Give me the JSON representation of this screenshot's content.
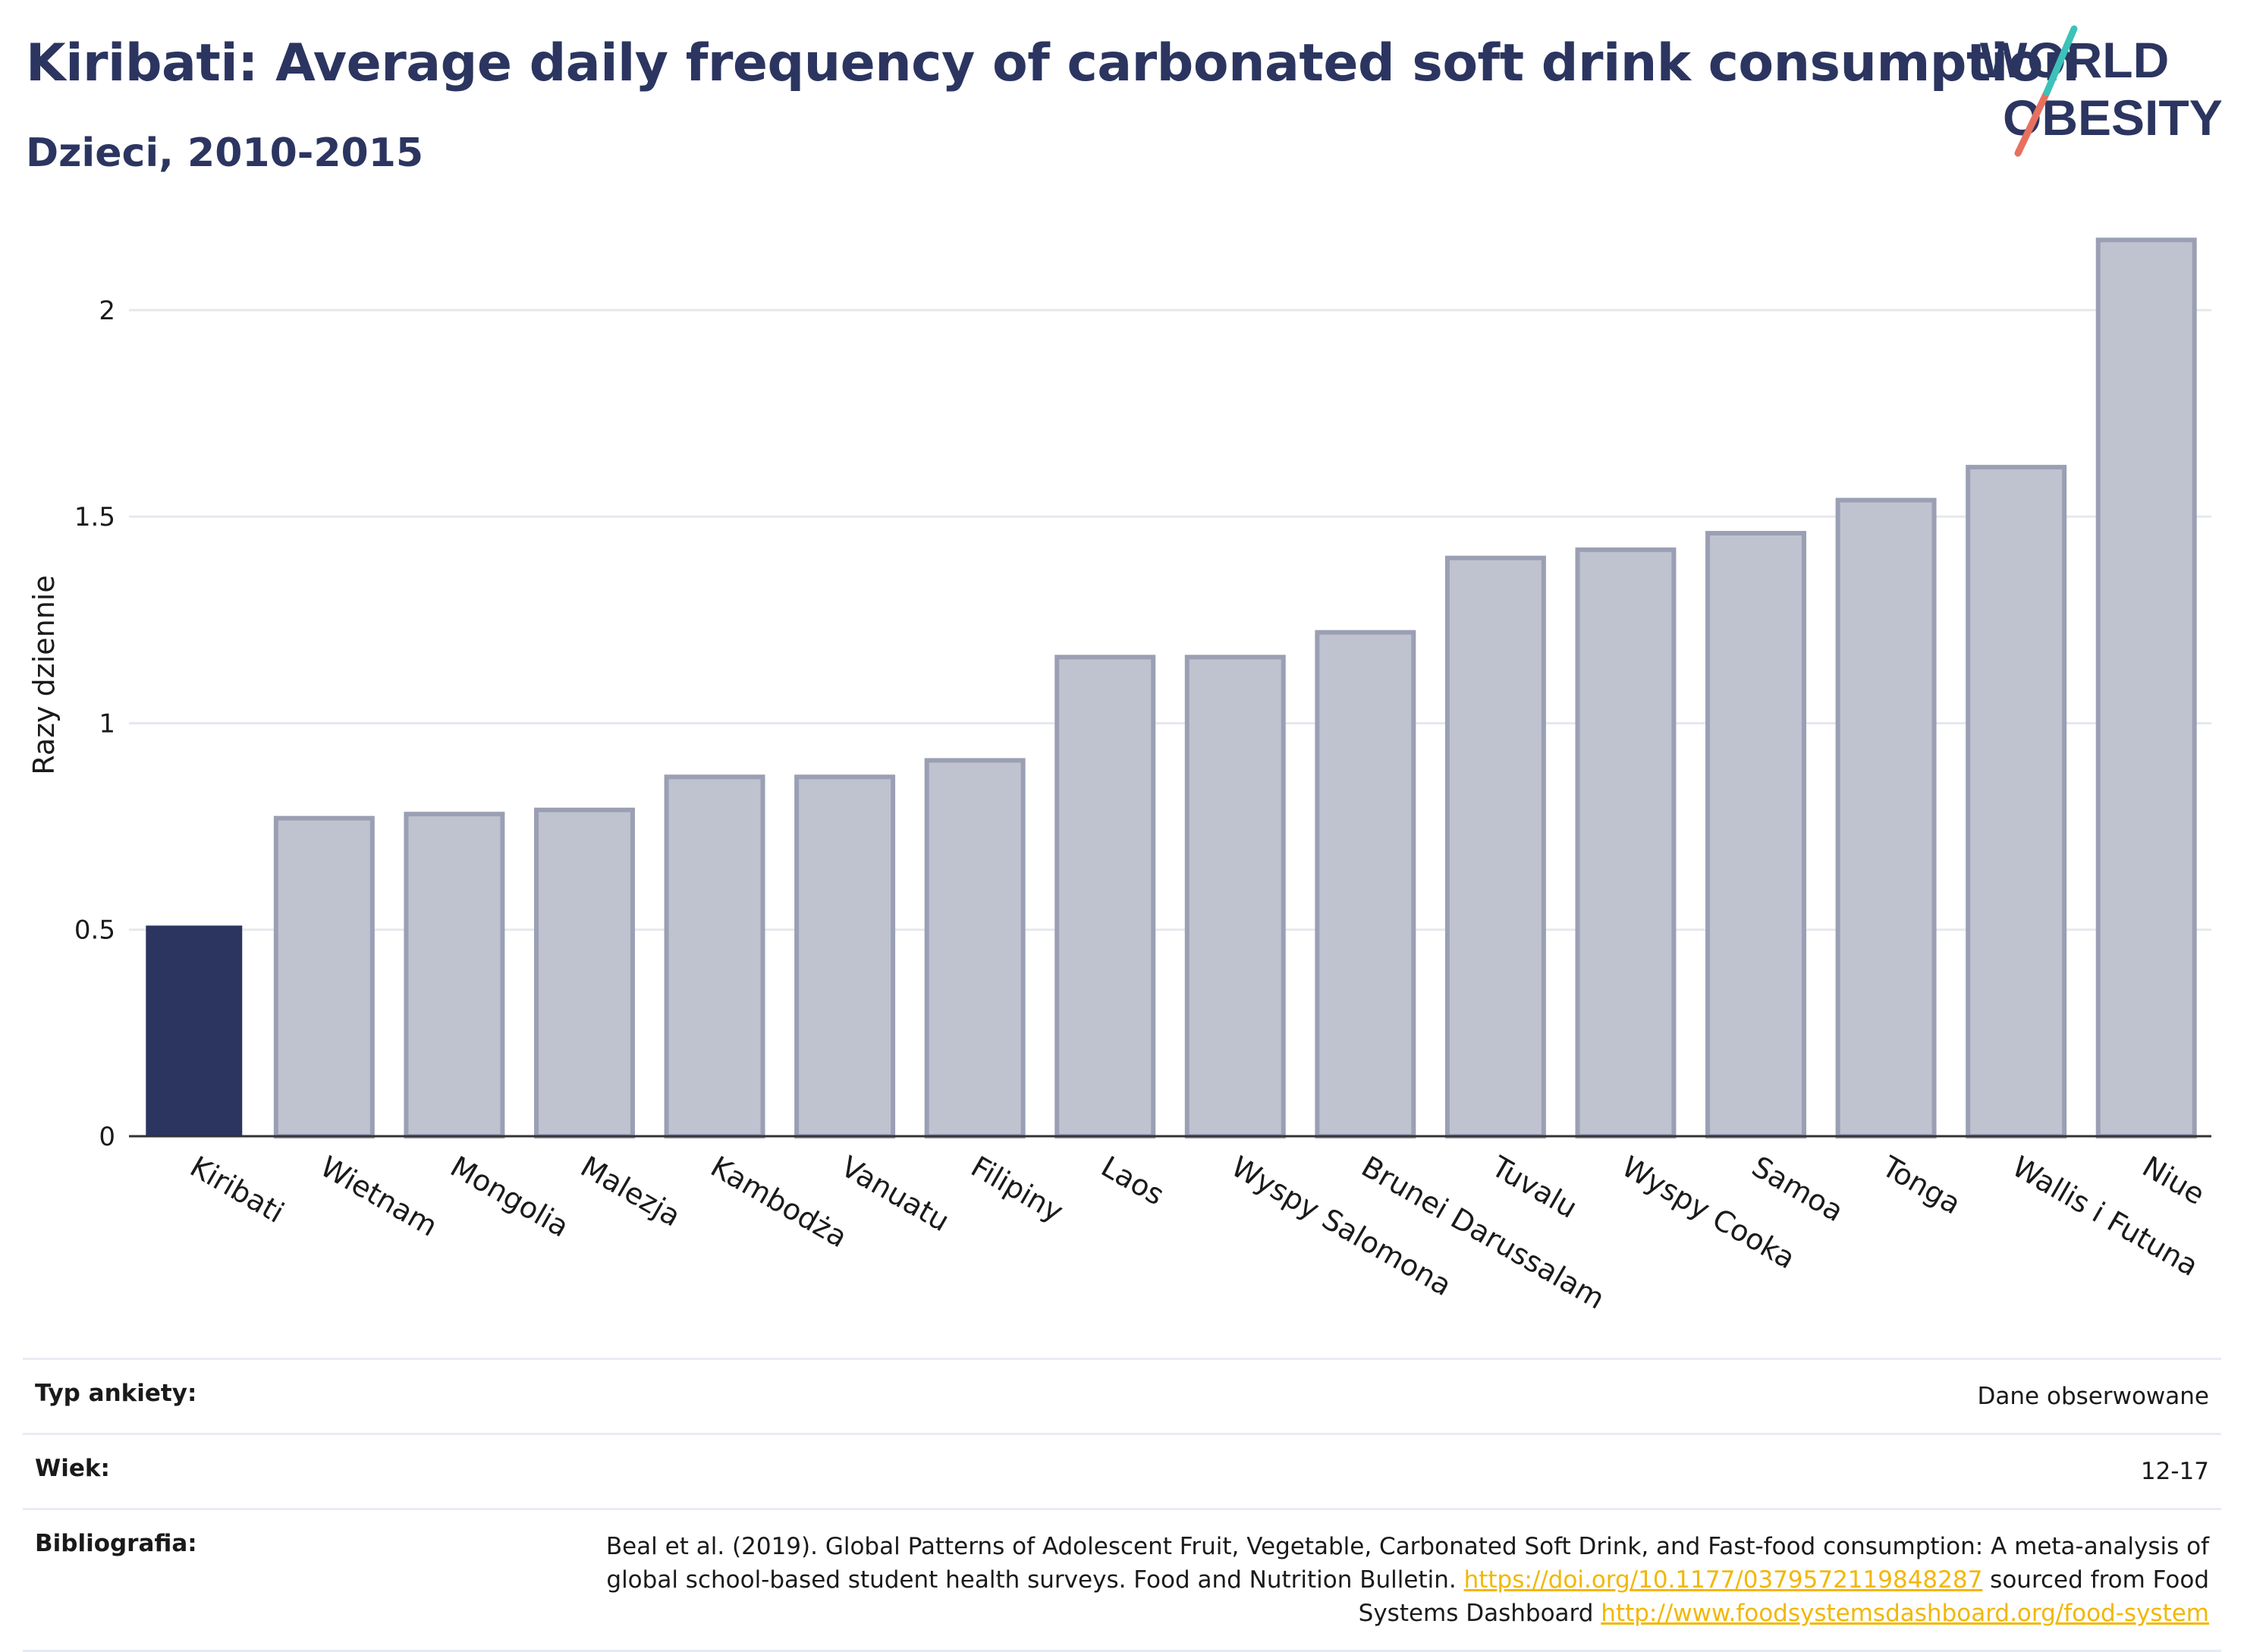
{
  "header": {
    "title": "Kiribati: Average daily frequency of carbonated soft drink consumption",
    "subtitle": "Dzieci, 2010-2015"
  },
  "logo": {
    "line1": "WORLD",
    "line2": "OBESITY"
  },
  "colors": {
    "highlight": "#2b3560",
    "bar_fill": "#bfc3cf",
    "bar_stroke": "#9a9fb4",
    "grid": "#e6e8ee",
    "link": "#f2b705"
  },
  "chart_data": {
    "type": "bar",
    "ylabel": "Razy dziennie",
    "ylim": [
      0,
      2.2
    ],
    "yticks": [
      0,
      0.5,
      1,
      1.5,
      2
    ],
    "ytick_labels": [
      "0",
      "0.5",
      "1",
      "1.5",
      "2"
    ],
    "categories": [
      "Kiribati",
      "Wietnam",
      "Mongolia",
      "Malezja",
      "Kambodża",
      "Vanuatu",
      "Filipiny",
      "Laos",
      "Wyspy Salomona",
      "Brunei Darussalam",
      "Tuvalu",
      "Wyspy Cooka",
      "Samoa",
      "Tonga",
      "Wallis i Futuna",
      "Niue"
    ],
    "values": [
      0.51,
      0.77,
      0.78,
      0.79,
      0.87,
      0.87,
      0.91,
      1.16,
      1.16,
      1.22,
      1.4,
      1.42,
      1.46,
      1.54,
      1.62,
      2.17
    ],
    "highlight": "Kiribati",
    "grid": true
  },
  "meta": {
    "survey_label": "Typ ankiety:",
    "survey_value": "Dane obserwowane",
    "age_label": "Wiek:",
    "age_value": "12-17",
    "bib_label": "Bibliografia:",
    "bib_text1": "Beal et al. (2019). Global Patterns of Adolescent Fruit, Vegetable, Carbonated Soft Drink, and Fast-food consumption: A meta-analysis of global school-based student health surveys. Food and Nutrition Bulletin. ",
    "bib_link1": "https://doi.org/10.1177/0379572119848287",
    "bib_text2": " sourced from Food Systems Dashboard ",
    "bib_link2": "http://www.foodsystemsdashboard.org/food-system"
  }
}
